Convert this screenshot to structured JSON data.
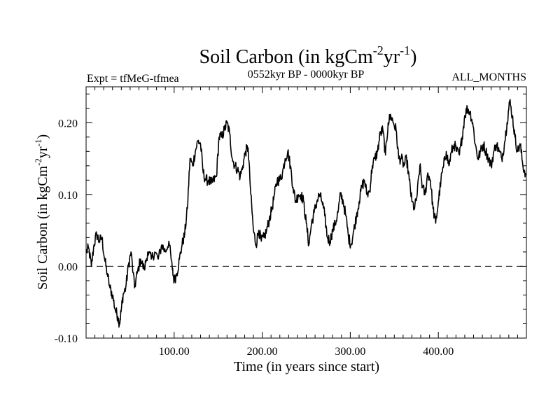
{
  "chart_data": {
    "type": "line",
    "title": "Soil Carbon (in kgCm",
    "title_sup1": "-2",
    "title_mid": "yr",
    "title_sup2": "-1",
    "title_end": ")",
    "experiment": "Expt = tfMeG-tfmea",
    "period": "0552kyr BP - 0000kyr BP",
    "months": "ALL_MONTHS",
    "xlabel": "Time (in years since start)",
    "ylabel_main": "Soil Carbon (in kgCm",
    "ylabel_sup1": "-2",
    "ylabel_mid": "yr",
    "ylabel_sup2": "-1",
    "ylabel_end": ")",
    "xlim": [
      0,
      500
    ],
    "ylim": [
      -0.1,
      0.25
    ],
    "x_ticks": [
      100,
      200,
      300,
      400
    ],
    "x_tick_labels": [
      "100.00",
      "200.00",
      "300.00",
      "400.00"
    ],
    "y_ticks": [
      -0.1,
      0.0,
      0.1,
      0.2
    ],
    "y_tick_labels": [
      "-0.10",
      "0.00",
      "0.10",
      "0.20"
    ],
    "reference_line": 0.0,
    "series": [
      {
        "name": "Soil Carbon",
        "x": [
          0,
          3,
          6,
          9,
          12,
          15,
          18,
          21,
          24,
          27,
          30,
          33,
          36,
          38,
          40,
          42,
          45,
          48,
          51,
          55,
          58,
          62,
          66,
          70,
          74,
          78,
          82,
          86,
          90,
          94,
          98,
          100,
          103,
          106,
          109,
          112,
          115,
          118,
          121,
          124,
          127,
          130,
          133,
          136,
          139,
          142,
          145,
          148,
          151,
          154,
          157,
          160,
          163,
          166,
          169,
          172,
          175,
          178,
          181,
          184,
          187,
          190,
          193,
          196,
          199,
          202,
          205,
          208,
          211,
          214,
          217,
          220,
          223,
          226,
          229,
          232,
          235,
          238,
          241,
          244,
          247,
          250,
          253,
          256,
          259,
          262,
          265,
          268,
          271,
          274,
          277,
          280,
          283,
          286,
          289,
          292,
          295,
          298,
          301,
          304,
          307,
          310,
          313,
          316,
          319,
          322,
          325,
          328,
          331,
          334,
          337,
          340,
          343,
          346,
          349,
          352,
          355,
          358,
          361,
          364,
          367,
          370,
          373,
          376,
          379,
          382,
          385,
          388,
          391,
          394,
          397,
          400,
          403,
          406,
          409,
          412,
          415,
          418,
          421,
          424,
          427,
          430,
          433,
          436,
          439,
          442,
          445,
          448,
          451,
          454,
          457,
          460,
          463,
          466,
          469,
          472,
          475,
          478,
          481,
          484,
          487,
          490,
          493,
          496,
          499
        ],
        "values": [
          0.02,
          0.025,
          0.0,
          0.03,
          0.045,
          0.035,
          0.04,
          0.01,
          -0.01,
          -0.03,
          -0.04,
          -0.06,
          -0.07,
          -0.08,
          -0.06,
          -0.04,
          -0.03,
          0.0,
          0.02,
          -0.03,
          -0.01,
          0.01,
          -0.005,
          0.02,
          0.01,
          0.02,
          0.01,
          0.03,
          0.02,
          0.035,
          -0.005,
          -0.02,
          -0.01,
          0.01,
          0.03,
          0.045,
          0.08,
          0.15,
          0.14,
          0.16,
          0.175,
          0.17,
          0.13,
          0.12,
          0.12,
          0.115,
          0.12,
          0.125,
          0.18,
          0.18,
          0.19,
          0.2,
          0.185,
          0.15,
          0.14,
          0.135,
          0.125,
          0.14,
          0.16,
          0.165,
          0.1,
          0.05,
          0.03,
          0.05,
          0.035,
          0.04,
          0.05,
          0.065,
          0.08,
          0.1,
          0.12,
          0.12,
          0.13,
          0.15,
          0.16,
          0.14,
          0.11,
          0.09,
          0.1,
          0.1,
          0.09,
          0.06,
          0.03,
          0.06,
          0.075,
          0.09,
          0.1,
          0.09,
          0.07,
          0.04,
          0.035,
          0.05,
          0.06,
          0.075,
          0.1,
          0.09,
          0.07,
          0.04,
          0.03,
          0.05,
          0.07,
          0.09,
          0.11,
          0.12,
          0.1,
          0.105,
          0.14,
          0.15,
          0.16,
          0.185,
          0.19,
          0.155,
          0.2,
          0.21,
          0.2,
          0.19,
          0.15,
          0.15,
          0.14,
          0.15,
          0.12,
          0.09,
          0.08,
          0.1,
          0.14,
          0.11,
          0.1,
          0.13,
          0.12,
          0.08,
          0.06,
          0.09,
          0.12,
          0.14,
          0.16,
          0.14,
          0.16,
          0.17,
          0.16,
          0.155,
          0.18,
          0.21,
          0.22,
          0.215,
          0.2,
          0.17,
          0.15,
          0.16,
          0.17,
          0.16,
          0.15,
          0.14,
          0.16,
          0.17,
          0.16,
          0.15,
          0.17,
          0.2,
          0.23,
          0.21,
          0.18,
          0.16,
          0.17,
          0.14,
          0.13
        ]
      }
    ]
  }
}
